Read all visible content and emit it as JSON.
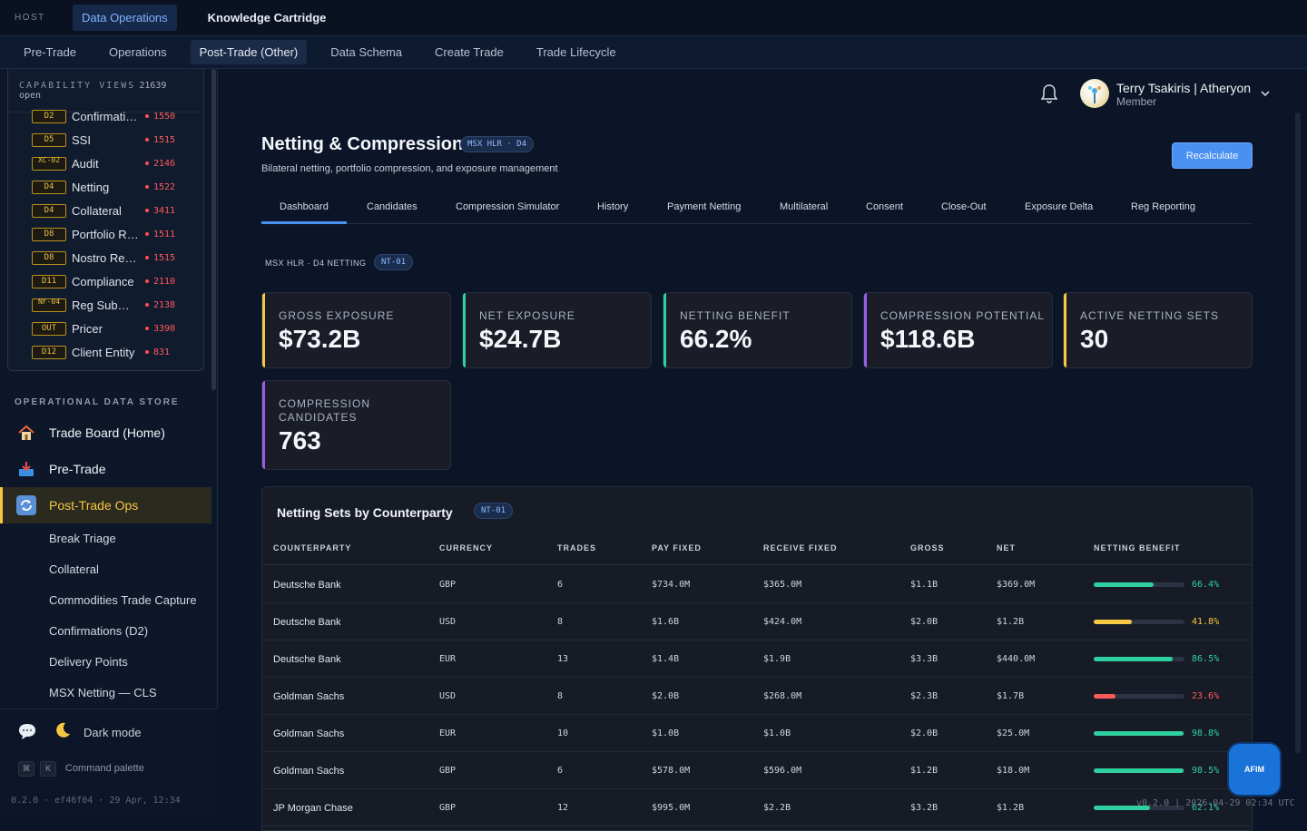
{
  "topbar": {
    "host": "HOST",
    "tabs": [
      {
        "label": "Data Operations"
      },
      {
        "label": "Knowledge Cartridge"
      }
    ]
  },
  "subnav": {
    "items": [
      "Pre-Trade",
      "Operations",
      "Post-Trade (Other)",
      "Data Schema",
      "Create Trade",
      "Trade Lifecycle"
    ]
  },
  "sidebar": {
    "capability": {
      "label": "CAPABILITY VIEWS",
      "count": "21639 open",
      "items": [
        {
          "badge": "D2",
          "name": "Confirmations",
          "count": "1550"
        },
        {
          "badge": "D5",
          "name": "SSI",
          "count": "1515"
        },
        {
          "badge": "XC-02",
          "name": "Audit",
          "count": "2146"
        },
        {
          "badge": "D4",
          "name": "Netting",
          "count": "1522"
        },
        {
          "badge": "D4",
          "name": "Collateral",
          "count": "3411"
        },
        {
          "badge": "D8",
          "name": "Portfolio Reconciliation",
          "count": "1511"
        },
        {
          "badge": "D8",
          "name": "Nostro Reconciliation",
          "count": "1515"
        },
        {
          "badge": "D11",
          "name": "Compliance",
          "count": "2110"
        },
        {
          "badge": "NF-04",
          "name": "Reg Submission",
          "count": "2138"
        },
        {
          "badge": "OUT",
          "name": "Pricer",
          "count": "3390"
        },
        {
          "badge": "D12",
          "name": "Client Entity",
          "count": "831"
        }
      ]
    },
    "ods_label": "OPERATIONAL DATA STORE",
    "main_items": [
      {
        "label": "Trade Board (Home)",
        "icon": "house-icon"
      },
      {
        "label": "Pre-Trade",
        "icon": "inbox-tray-icon"
      },
      {
        "label": "Post-Trade Ops",
        "icon": "cycle-arrows-icon"
      }
    ],
    "sub_items": [
      "Break Triage",
      "Collateral",
      "Commodities Trade Capture",
      "Confirmations (D2)",
      "Delivery Points",
      "MSX Netting — CLS"
    ],
    "footer": {
      "dark_mode": "Dark mode",
      "kbd1": "⌘",
      "kbd2": "K",
      "command": "Command palette",
      "version": "0.2.0 · ef46f04 · 29 Apr, 12:34"
    }
  },
  "user": {
    "name": "Terry Tsakiris | Atheryon",
    "role": "Member"
  },
  "page": {
    "title": "Netting & Compression",
    "title_pill": "MSX HLR · D4",
    "subtitle": "Bilateral netting, portfolio compression, and exposure management",
    "recalc_label": "Recalculate",
    "tabs": [
      "Dashboard",
      "Candidates",
      "Compression Simulator",
      "History",
      "Payment Netting",
      "Multilateral",
      "Consent",
      "Close-Out",
      "Exposure Delta",
      "Reg Reporting"
    ],
    "section_label": "MSX HLR · D4 NETTING",
    "section_pill": "NT-01"
  },
  "kpis": [
    {
      "label": "Gross Exposure",
      "value": "$73.2B",
      "color": "#f5c742"
    },
    {
      "label": "Net Exposure",
      "value": "$24.7B",
      "color": "#2fd0a0"
    },
    {
      "label": "Netting Benefit",
      "value": "66.2%",
      "color": "#2fd0a0"
    },
    {
      "label": "Compression Potential",
      "value": "$118.6B",
      "color": "#9b5de5"
    },
    {
      "label": "Active Netting Sets",
      "value": "30",
      "color": "#f5c742"
    },
    {
      "label": "Compression Candidates",
      "value": "763",
      "color": "#9b5de5"
    }
  ],
  "table": {
    "title": "Netting Sets by Counterparty",
    "pill": "NT-01",
    "headers": [
      "COUNTERPARTY",
      "CURRENCY",
      "TRADES",
      "PAY FIXED",
      "RECEIVE FIXED",
      "GROSS",
      "NET",
      "NETTING BENEFIT"
    ],
    "rows": [
      {
        "cp": "Deutsche Bank",
        "ccy": "GBP",
        "trades": "6",
        "pay": "$734.0M",
        "recv": "$365.0M",
        "gross": "$1.1B",
        "net": "$369.0M",
        "benefit": "66.4%",
        "frac": 0.664,
        "color": "#2fd0a0"
      },
      {
        "cp": "Deutsche Bank",
        "ccy": "USD",
        "trades": "8",
        "pay": "$1.6B",
        "recv": "$424.0M",
        "gross": "$2.0B",
        "net": "$1.2B",
        "benefit": "41.8%",
        "frac": 0.418,
        "color": "#f5c742"
      },
      {
        "cp": "Deutsche Bank",
        "ccy": "EUR",
        "trades": "13",
        "pay": "$1.4B",
        "recv": "$1.9B",
        "gross": "$3.3B",
        "net": "$440.0M",
        "benefit": "86.5%",
        "frac": 0.865,
        "color": "#2fd0a0"
      },
      {
        "cp": "Goldman Sachs",
        "ccy": "USD",
        "trades": "8",
        "pay": "$2.0B",
        "recv": "$268.0M",
        "gross": "$2.3B",
        "net": "$1.7B",
        "benefit": "23.6%",
        "frac": 0.236,
        "color": "#ff5a5a"
      },
      {
        "cp": "Goldman Sachs",
        "ccy": "EUR",
        "trades": "10",
        "pay": "$1.0B",
        "recv": "$1.0B",
        "gross": "$2.0B",
        "net": "$25.0M",
        "benefit": "98.8%",
        "frac": 0.988,
        "color": "#2fd0a0"
      },
      {
        "cp": "Goldman Sachs",
        "ccy": "GBP",
        "trades": "6",
        "pay": "$578.0M",
        "recv": "$596.0M",
        "gross": "$1.2B",
        "net": "$18.0M",
        "benefit": "98.5%",
        "frac": 0.985,
        "color": "#2fd0a0"
      },
      {
        "cp": "JP Morgan Chase",
        "ccy": "GBP",
        "trades": "12",
        "pay": "$995.0M",
        "recv": "$2.2B",
        "gross": "$3.2B",
        "net": "$1.2B",
        "benefit": "62.1%",
        "frac": 0.621,
        "color": "#2fd0a0"
      }
    ]
  },
  "afim": "AFIM",
  "footer": "v0.2.0 | 2026-04-29 02:34 UTC"
}
